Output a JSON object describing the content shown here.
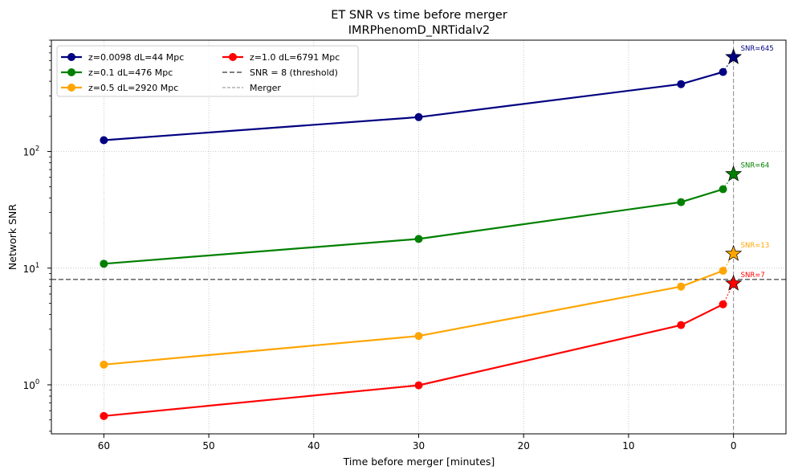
{
  "chart_data": {
    "type": "line",
    "title": "ET SNR vs time before merger",
    "subtitle": "IMRPhenomD_NRTidalv2",
    "xlabel": "Time before merger [minutes]",
    "ylabel": "Network SNR",
    "x_ticks": [
      "60",
      "50",
      "40",
      "30",
      "20",
      "10",
      "0"
    ],
    "y_ticks": [
      "10",
      "10",
      "10"
    ],
    "y_tick_exponents": [
      "0",
      "1",
      "2"
    ],
    "xlim": [
      65,
      -5
    ],
    "ylim": [
      0.38,
      900
    ],
    "y_scale": "log",
    "x_inverted": true,
    "grid": true,
    "legend_position": "top-left",
    "series": [
      {
        "name": "z=0.0098  dL=44 Mpc",
        "color": "#000080",
        "x": [
          60,
          30,
          5,
          1
        ],
        "y": [
          125,
          197,
          378,
          480
        ],
        "merger_snr": 645,
        "merger_label": "SNR=645"
      },
      {
        "name": "z=0.1  dL=476 Mpc",
        "color": "#008000",
        "x": [
          60,
          30,
          5,
          1
        ],
        "y": [
          10.9,
          17.8,
          36.8,
          47.5
        ],
        "merger_snr": 64,
        "merger_label": "SNR=64"
      },
      {
        "name": "z=0.5  dL=2920 Mpc",
        "color": "#FFA500",
        "x": [
          60,
          30,
          5,
          1
        ],
        "y": [
          1.49,
          2.62,
          6.95,
          9.5
        ],
        "merger_snr": 13.3,
        "merger_label": "SNR=13"
      },
      {
        "name": "z=1.0  dL=6791 Mpc",
        "color": "#FF0000",
        "x": [
          60,
          30,
          5,
          1
        ],
        "y": [
          0.54,
          0.99,
          3.25,
          4.9
        ],
        "merger_snr": 7.4,
        "merger_label": "SNR=7"
      }
    ],
    "threshold": {
      "name": "SNR = 8 (threshold)",
      "value": 8,
      "color": "#555555"
    },
    "merger_line": {
      "name": "Merger",
      "x": 0,
      "color": "#888888"
    }
  }
}
